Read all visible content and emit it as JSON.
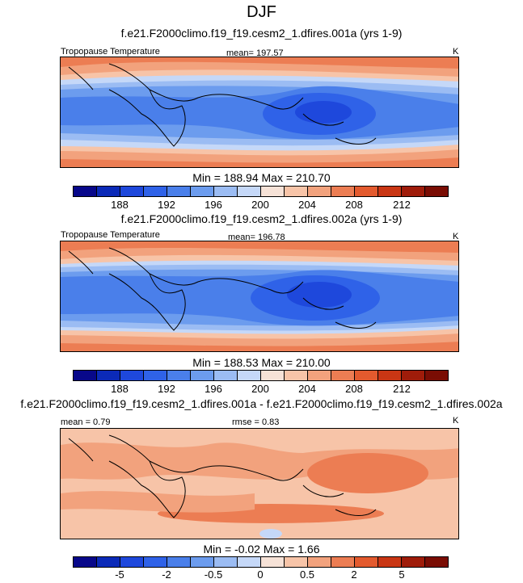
{
  "figure_title": "DJF",
  "panels": [
    {
      "title": "f.e21.F2000climo.f19_f19.cesm2_1.dfires.001a (yrs 1-9)",
      "left_label": "Tropopause Temperature",
      "center_label": "mean= 197.57",
      "units": "K",
      "stats": "Min = 188.94 Max = 210.70",
      "colorbar_labels": [
        "188",
        "192",
        "196",
        "200",
        "204",
        "208",
        "212"
      ]
    },
    {
      "title": "f.e21.F2000climo.f19_f19.cesm2_1.dfires.002a (yrs 1-9)",
      "left_label": "Tropopause Temperature",
      "center_label": "mean= 196.78",
      "units": "K",
      "stats": "Min = 188.53 Max = 210.00",
      "colorbar_labels": [
        "188",
        "192",
        "196",
        "200",
        "204",
        "208",
        "212"
      ]
    },
    {
      "title": "f.e21.F2000climo.f19_f19.cesm2_1.dfires.001a - f.e21.F2000climo.f19_f19.cesm2_1.dfires.002a",
      "left_label": "mean =   0.79",
      "center_label": "rmse =   0.83",
      "units": "K",
      "stats": "Min =  -0.02 Max =   1.66",
      "colorbar_labels": [
        "-5",
        "-2",
        "-0.5",
        "0",
        "0.5",
        "2",
        "5"
      ]
    }
  ],
  "colors": {
    "scale": [
      "#08088a",
      "#0b2ab8",
      "#1e48dc",
      "#2f62e8",
      "#4a7fea",
      "#6c9cee",
      "#9bbcf3",
      "#c5d8f8",
      "#f6e2d7",
      "#f7c4a8",
      "#f2a27d",
      "#ec7d53",
      "#e35a2e",
      "#c93614",
      "#9f1c0a",
      "#7a0d04"
    ]
  }
}
